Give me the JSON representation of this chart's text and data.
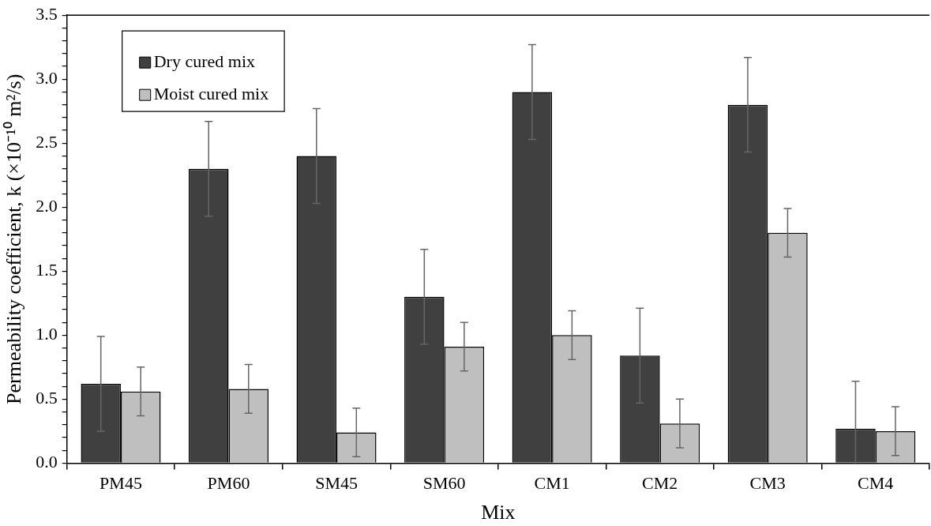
{
  "chart_data": {
    "type": "bar",
    "xlabel": "Mix",
    "ylabel": "Permeability coefficient, k (×10⁻¹⁰ m²/s)",
    "categories": [
      "PM45",
      "PM60",
      "SM45",
      "SM60",
      "CM1",
      "CM2",
      "CM3",
      "CM4"
    ],
    "series": [
      {
        "name": "Dry cured mix",
        "color": "#404040",
        "values": [
          0.62,
          2.3,
          2.4,
          1.3,
          2.9,
          0.84,
          2.8,
          0.27
        ],
        "errors": [
          0.37,
          0.37,
          0.37,
          0.37,
          0.37,
          0.37,
          0.37,
          [
            0,
            0.64
          ]
        ]
      },
      {
        "name": "Moist cured mix",
        "color": "#bfbfbf",
        "values": [
          0.56,
          0.58,
          0.24,
          0.91,
          1.0,
          0.31,
          1.8,
          0.25
        ],
        "errors": [
          0.19,
          0.19,
          0.19,
          0.19,
          0.19,
          0.19,
          0.19,
          0.19
        ]
      }
    ],
    "ylim": [
      0,
      3.5
    ],
    "yticks": [
      {
        "value": 0,
        "label": "0.0"
      },
      {
        "value": 0.1,
        "label": null
      },
      {
        "value": 0.2,
        "label": null
      },
      {
        "value": 0.3,
        "label": null
      },
      {
        "value": 0.4,
        "label": null
      },
      {
        "value": 0.5,
        "label": "0.5"
      },
      {
        "value": 0.6,
        "label": null
      },
      {
        "value": 0.7,
        "label": null
      },
      {
        "value": 0.8,
        "label": null
      },
      {
        "value": 0.9,
        "label": null
      },
      {
        "value": 1,
        "label": "1.0"
      },
      {
        "value": 1.1,
        "label": null
      },
      {
        "value": 1.2,
        "label": null
      },
      {
        "value": 1.3,
        "label": null
      },
      {
        "value": 1.4,
        "label": null
      },
      {
        "value": 1.5,
        "label": "1.5"
      },
      {
        "value": 1.6,
        "label": null
      },
      {
        "value": 1.7,
        "label": null
      },
      {
        "value": 1.8,
        "label": null
      },
      {
        "value": 1.9,
        "label": null
      },
      {
        "value": 2,
        "label": "2.0"
      },
      {
        "value": 2.1,
        "label": null
      },
      {
        "value": 2.2,
        "label": null
      },
      {
        "value": 2.3,
        "label": null
      },
      {
        "value": 2.4,
        "label": null
      },
      {
        "value": 2.5,
        "label": "2.5"
      },
      {
        "value": 2.6,
        "label": null
      },
      {
        "value": 2.7,
        "label": null
      },
      {
        "value": 2.8,
        "label": null
      },
      {
        "value": 2.9,
        "label": null
      },
      {
        "value": 3,
        "label": "3.0"
      },
      {
        "value": 3.1,
        "label": null
      },
      {
        "value": 3.2,
        "label": null
      },
      {
        "value": 3.3,
        "label": null
      },
      {
        "value": 3.4,
        "label": null
      },
      {
        "value": 3.5,
        "label": "3.5"
      }
    ],
    "legend": "top left",
    "grid": false
  }
}
